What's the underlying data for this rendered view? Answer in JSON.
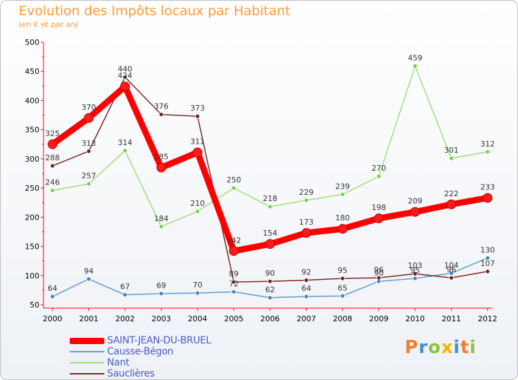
{
  "title": "Evolution des Impôts locaux par Habitant",
  "subtitle": "(en € et par an)",
  "logo": {
    "letters": [
      "P",
      "r",
      "o",
      "x",
      "i",
      "t",
      "i"
    ],
    "colors": [
      "#f07f2a",
      "#3d8fd6",
      "#8bc53f",
      "#f4b400",
      "#3d8fd6",
      "#f07f2a",
      "#8bc53f"
    ]
  },
  "chart_data": {
    "type": "line",
    "title": "Evolution des Impôts locaux par Habitant",
    "subtitle": "(en € et par an)",
    "xlabel": "",
    "ylabel": "",
    "x": [
      "2000",
      "2001",
      "2002",
      "2003",
      "2004",
      "2005",
      "2006",
      "2007",
      "2008",
      "2009",
      "2010",
      "2011",
      "2012"
    ],
    "ylim": [
      50,
      500
    ],
    "yticks": [
      50,
      100,
      150,
      200,
      250,
      300,
      350,
      400,
      450,
      500
    ],
    "grid": false,
    "legend_position": "bottom-left",
    "series": [
      {
        "name": "SAINT-JEAN-DU-BRUEL",
        "color": "#ff0000",
        "marker_color": "#ff1a1a",
        "values": [
          325,
          370,
          424,
          285,
          311,
          142,
          154,
          173,
          180,
          198,
          209,
          222,
          233
        ],
        "emphasis": true
      },
      {
        "name": "Causse-Bégon",
        "color": "#5b9bd5",
        "marker_color": "#3f7fc0",
        "values": [
          64,
          94,
          67,
          69,
          70,
          72,
          62,
          64,
          65,
          90,
          95,
          104,
          130
        ],
        "emphasis": false
      },
      {
        "name": "Nant",
        "color": "#99e07a",
        "marker_color": "#7acb4a",
        "values": [
          246,
          257,
          314,
          184,
          210,
          250,
          218,
          229,
          239,
          270,
          459,
          301,
          312
        ],
        "emphasis": false
      },
      {
        "name": "Sauclières",
        "color": "#7a2626",
        "marker_color": "#6b1f1f",
        "values": [
          288,
          313,
          440,
          376,
          373,
          89,
          90,
          92,
          95,
          96,
          103,
          96,
          107
        ],
        "emphasis": false
      }
    ]
  }
}
